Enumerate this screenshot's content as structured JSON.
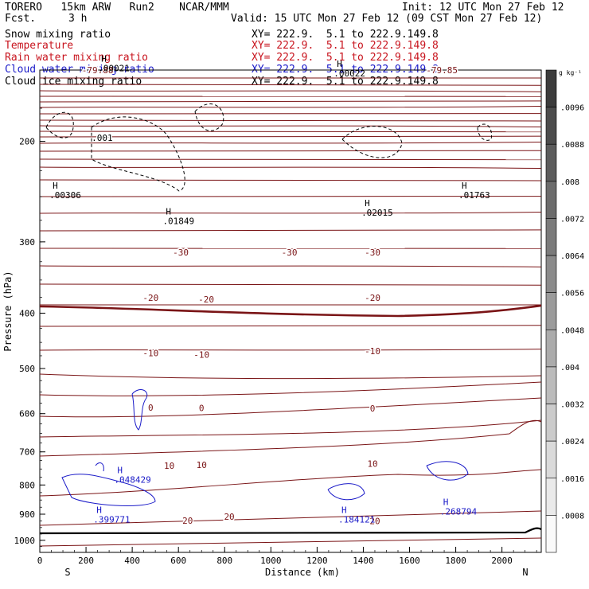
{
  "header": {
    "model_line": "TORERO   15km ARW   Run2    NCAR/MMM",
    "fcst_label": "Fcst.",
    "fcst_value": "3 h",
    "init": "Init: 12 UTC Mon 27 Feb 12",
    "valid": "Valid: 15 UTC Mon 27 Feb 12 (09 CST Mon 27 Feb 12)"
  },
  "fields": [
    {
      "name": "Snow mixing ratio",
      "xy": "XY= 222.9.  5.1 to 222.9.149.8",
      "color": "#000000"
    },
    {
      "name": "Temperature",
      "xy": "XY= 222.9.  5.1 to 222.9.149.8",
      "color": "#c8141e"
    },
    {
      "name": "Rain water mixing ratio",
      "xy": "XY= 222.9.  5.1 to 222.9.149.8",
      "color": "#c8141e"
    },
    {
      "name": "Cloud water mixing ratio",
      "xy": "XY= 222.9.  5.1 to 222.9.149.8",
      "color": "#1a1ac8"
    },
    {
      "name": "Cloud ice mixing ratio",
      "xy": "XY= 222.9.  5.1 to 222.9.149.8",
      "color": "#000000"
    }
  ],
  "chart_data": {
    "type": "contour",
    "xlabel": "Distance (km)",
    "ylabel": "Pressure (hPa)",
    "xlim": [
      0,
      2170
    ],
    "ylim": [
      150,
      1050
    ],
    "y_log": true,
    "x_ticks": [
      0,
      200,
      400,
      600,
      800,
      1000,
      1200,
      1400,
      1600,
      1800,
      2000
    ],
    "y_ticks": [
      200,
      300,
      400,
      500,
      600,
      700,
      800,
      900,
      1000
    ],
    "endpoints": {
      "left": "S",
      "right": "N"
    },
    "temperature_labels": [
      {
        "x": 250,
        "p": 150,
        "text": "-79.88"
      },
      {
        "x": 1740,
        "p": 150,
        "text": "-79.85"
      },
      {
        "x": 610,
        "p": 313,
        "text": "-30"
      },
      {
        "x": 1080,
        "p": 313,
        "text": "-30"
      },
      {
        "x": 1440,
        "p": 313,
        "text": "-30"
      },
      {
        "x": 480,
        "p": 376,
        "text": "-20"
      },
      {
        "x": 720,
        "p": 378,
        "text": "-20"
      },
      {
        "x": 1440,
        "p": 376,
        "text": "-20"
      },
      {
        "x": 480,
        "p": 470,
        "text": "-10"
      },
      {
        "x": 700,
        "p": 473,
        "text": "-10"
      },
      {
        "x": 1440,
        "p": 466,
        "text": "-10"
      },
      {
        "x": 480,
        "p": 585,
        "text": "0"
      },
      {
        "x": 700,
        "p": 586,
        "text": "0"
      },
      {
        "x": 1440,
        "p": 587,
        "text": "0"
      },
      {
        "x": 560,
        "p": 740,
        "text": "10"
      },
      {
        "x": 700,
        "p": 737,
        "text": "10"
      },
      {
        "x": 1440,
        "p": 734,
        "text": "10"
      },
      {
        "x": 640,
        "p": 923,
        "text": "20"
      },
      {
        "x": 820,
        "p": 908,
        "text": "20"
      },
      {
        "x": 1450,
        "p": 925,
        "text": "20"
      }
    ],
    "maxima": [
      {
        "x": 90,
        "p": 245,
        "label": ".00306",
        "color": "#000000"
      },
      {
        "x": 580,
        "p": 272,
        "label": ".01849",
        "color": "#000000"
      },
      {
        "x": 1440,
        "p": 263,
        "label": ".02015",
        "color": "#000000"
      },
      {
        "x": 1860,
        "p": 245,
        "label": ".01763",
        "color": "#000000"
      },
      {
        "x": 1320,
        "p": 150,
        "label": ".00022",
        "color": "#000000"
      },
      {
        "x": 300,
        "p": 147,
        "label": ".00021",
        "color": "#000000"
      },
      {
        "x": 370,
        "p": 773,
        "label": ".048429",
        "color": "#1a1ac8"
      },
      {
        "x": 280,
        "p": 907,
        "label": ".399771",
        "color": "#1a1ac8"
      },
      {
        "x": 1340,
        "p": 907,
        "label": ".184121",
        "color": "#1a1ac8"
      },
      {
        "x": 1780,
        "p": 878,
        "label": ".268794",
        "color": "#1a1ac8"
      }
    ],
    "contour_labels": [
      {
        "x": 270,
        "p": 197,
        "text": ".001"
      }
    ],
    "colorbar": {
      "unit": "g kg⁻¹",
      "ticks": [
        ".0096",
        ".0088",
        ".008",
        ".0072",
        ".0064",
        ".0056",
        ".0048",
        ".004",
        ".0032",
        ".0024",
        ".0016",
        ".0008"
      ]
    }
  }
}
